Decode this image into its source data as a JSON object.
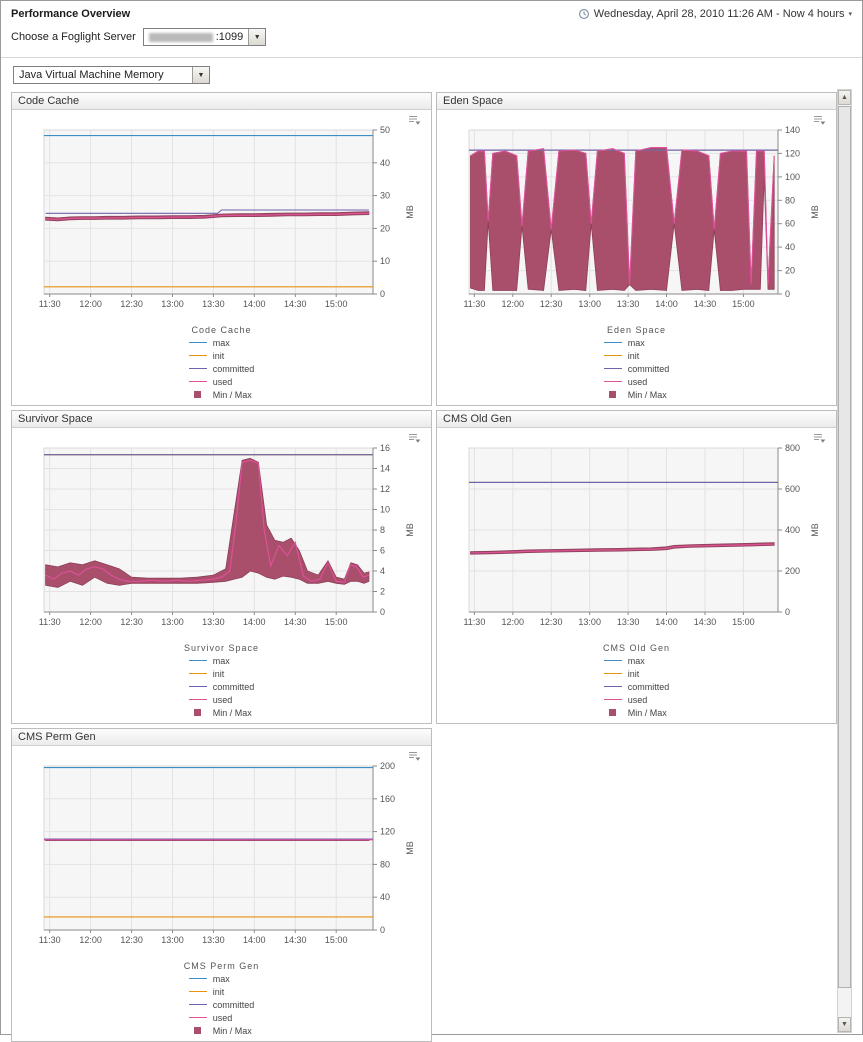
{
  "header": {
    "title": "Performance Overview",
    "time_range": "Wednesday, April 28, 2010 11:26 AM - Now 4 hours",
    "server_label": "Choose a Foglight Server",
    "server_value": ":1099",
    "metric_selector": "Java Virtual Machine Memory"
  },
  "colors": {
    "max": "#3d8ec4",
    "init": "#e8920e",
    "committed": "#6f63ae",
    "used": "#e0519a",
    "band": "#a94f6b",
    "band_edge": "#8d4059"
  },
  "legend_entries": [
    {
      "key": "max",
      "label": "max"
    },
    {
      "key": "init",
      "label": "init"
    },
    {
      "key": "committed",
      "label": "committed"
    },
    {
      "key": "used",
      "label": "used"
    },
    {
      "key": "minmax",
      "label": "Min / Max"
    }
  ],
  "axis": {
    "unit": "MB",
    "x_tick_values": [
      11.5,
      12,
      12.5,
      13,
      13.5,
      14,
      14.5,
      15
    ],
    "x_ticks": [
      "11:30",
      "12:00",
      "12:30",
      "13:00",
      "13:30",
      "14:00",
      "14:30",
      "15:00"
    ]
  },
  "chart_data": [
    {
      "type": "line",
      "title": "Code Cache",
      "ylabel": "MB",
      "ylim": [
        0,
        50
      ],
      "ytick": 10,
      "xlim": [
        11.43,
        15.45
      ],
      "series": {
        "max": 48.3,
        "init": 2.2,
        "committed": {
          "x": [
            11.45,
            13.55,
            13.6,
            15.4
          ],
          "y": [
            24.6,
            24.6,
            25.6,
            25.6
          ]
        },
        "used": {
          "x": [
            11.45,
            11.6,
            11.75,
            11.9,
            12.05,
            12.2,
            12.4,
            12.6,
            12.8,
            13.0,
            13.2,
            13.4,
            13.6,
            13.8,
            14.0,
            14.2,
            14.4,
            14.6,
            14.8,
            15.0,
            15.2,
            15.4
          ],
          "y": [
            22.9,
            22.7,
            23.0,
            23.1,
            23.1,
            23.2,
            23.2,
            23.3,
            23.3,
            23.4,
            23.4,
            23.5,
            23.9,
            24.0,
            24.0,
            24.1,
            24.2,
            24.2,
            24.3,
            24.3,
            24.5,
            24.6
          ]
        },
        "band": {
          "x": [
            11.45,
            11.6,
            11.75,
            11.9,
            12.05,
            12.2,
            12.4,
            12.6,
            12.8,
            13.0,
            13.2,
            13.4,
            13.6,
            13.8,
            14.0,
            14.2,
            14.4,
            14.6,
            14.8,
            15.0,
            15.2,
            15.4
          ],
          "min": [
            22.5,
            22.3,
            22.6,
            22.7,
            22.7,
            22.8,
            22.8,
            22.9,
            22.9,
            23.0,
            23.0,
            23.1,
            23.5,
            23.6,
            23.6,
            23.7,
            23.8,
            23.8,
            23.9,
            23.9,
            24.1,
            24.2
          ],
          "max": [
            23.4,
            23.2,
            23.5,
            23.6,
            23.6,
            23.7,
            23.7,
            23.8,
            23.8,
            23.9,
            23.9,
            24.0,
            24.4,
            24.5,
            24.5,
            24.6,
            24.7,
            24.7,
            24.8,
            24.8,
            25.0,
            25.1
          ]
        }
      }
    },
    {
      "type": "line",
      "title": "Eden Space",
      "ylabel": "MB",
      "ylim": [
        0,
        140
      ],
      "ytick": 20,
      "xlim": [
        11.43,
        15.45
      ],
      "series": {
        "max": 122.8,
        "init": 122.8,
        "committed": 122.8,
        "used": {
          "x": [
            11.45,
            11.55,
            11.63,
            11.68,
            11.74,
            11.9,
            12.05,
            12.12,
            12.2,
            12.4,
            12.5,
            12.6,
            12.8,
            12.95,
            13.02,
            13.1,
            13.3,
            13.45,
            13.52,
            13.6,
            13.8,
            14.0,
            14.1,
            14.2,
            14.4,
            14.55,
            14.62,
            14.7,
            14.85,
            15.0,
            15.04,
            15.1,
            15.17,
            15.22,
            15.27,
            15.32,
            15.4
          ],
          "y": [
            118,
            122,
            122,
            62,
            120,
            122,
            118,
            58,
            122,
            124,
            55,
            122,
            123,
            120,
            60,
            122,
            124,
            120,
            8,
            122,
            125,
            125,
            60,
            123,
            122,
            118,
            55,
            120,
            122,
            122,
            122,
            8,
            122,
            122,
            122,
            8,
            118
          ]
        },
        "band": {
          "x": [
            11.45,
            11.55,
            11.63,
            11.68,
            11.74,
            11.9,
            12.05,
            12.12,
            12.2,
            12.4,
            12.5,
            12.6,
            12.8,
            12.95,
            13.02,
            13.1,
            13.3,
            13.45,
            13.52,
            13.6,
            13.8,
            14.0,
            14.1,
            14.2,
            14.4,
            14.55,
            14.62,
            14.7,
            14.85,
            15.0,
            15.04,
            15.1,
            15.17,
            15.22,
            15.27,
            15.32,
            15.4
          ],
          "min": [
            5,
            3,
            3,
            62,
            3,
            3,
            3,
            58,
            4,
            3,
            55,
            3,
            4,
            3,
            60,
            3,
            4,
            3,
            8,
            3,
            4,
            3,
            60,
            3,
            4,
            3,
            55,
            3,
            3,
            4,
            4,
            4,
            4,
            4,
            100,
            4,
            4
          ],
          "max": [
            118,
            122,
            122,
            62,
            120,
            122,
            118,
            58,
            122,
            124,
            55,
            122,
            123,
            120,
            60,
            122,
            124,
            120,
            8,
            122,
            125,
            125,
            60,
            123,
            122,
            118,
            55,
            120,
            122,
            122,
            122,
            8,
            122,
            122,
            122,
            8,
            118
          ]
        }
      }
    },
    {
      "type": "line",
      "title": "Survivor Space",
      "ylabel": "MB",
      "ylim": [
        0,
        16
      ],
      "ytick": 2,
      "xlim": [
        11.43,
        15.45
      ],
      "series": {
        "max": 15.35,
        "init": 15.35,
        "committed": 15.35,
        "used": {
          "x": [
            11.45,
            11.55,
            11.65,
            11.75,
            11.85,
            11.95,
            12.05,
            12.15,
            12.25,
            12.35,
            12.45,
            12.6,
            12.75,
            12.9,
            13.05,
            13.2,
            13.35,
            13.5,
            13.6,
            13.7,
            13.78,
            13.85,
            13.95,
            14.05,
            14.12,
            14.2,
            14.3,
            14.4,
            14.5,
            14.6,
            14.7,
            14.8,
            14.9,
            15.0,
            15.1,
            15.17,
            15.25,
            15.33,
            15.4
          ],
          "y": [
            3.6,
            3.2,
            3.8,
            4.0,
            3.6,
            4.2,
            4.4,
            4.2,
            3.6,
            3.2,
            3.0,
            3.0,
            3.1,
            3.0,
            3.1,
            3.0,
            3.1,
            3.2,
            3.4,
            4.0,
            9.0,
            14.6,
            14.8,
            14.5,
            8.0,
            4.5,
            6.5,
            5.5,
            6.8,
            3.5,
            3.0,
            3.2,
            4.8,
            3.0,
            2.9,
            4.6,
            4.4,
            3.4,
            3.6
          ]
        },
        "band": {
          "x": [
            11.45,
            11.6,
            11.75,
            11.9,
            12.05,
            12.2,
            12.35,
            12.5,
            12.7,
            12.9,
            13.1,
            13.3,
            13.5,
            13.65,
            13.75,
            13.85,
            13.95,
            14.05,
            14.15,
            14.25,
            14.35,
            14.45,
            14.55,
            14.65,
            14.78,
            14.9,
            15.0,
            15.1,
            15.18,
            15.26,
            15.34,
            15.4
          ],
          "min": [
            2.6,
            2.4,
            3.0,
            2.6,
            3.4,
            2.8,
            2.6,
            2.8,
            2.8,
            2.8,
            2.8,
            2.8,
            2.9,
            3.0,
            3.2,
            3.4,
            4.0,
            3.8,
            3.4,
            3.2,
            3.5,
            3.4,
            3.2,
            2.8,
            2.8,
            3.0,
            2.8,
            2.7,
            3.0,
            3.0,
            2.8,
            3.0
          ],
          "max": [
            4.6,
            4.4,
            4.8,
            4.6,
            5.0,
            4.6,
            4.2,
            3.4,
            3.3,
            3.3,
            3.3,
            3.4,
            3.6,
            4.2,
            9.5,
            14.8,
            15.0,
            14.6,
            8.5,
            7.0,
            6.8,
            7.2,
            6.0,
            4.0,
            3.6,
            5.0,
            3.4,
            3.2,
            4.8,
            4.6,
            3.8,
            3.9
          ]
        }
      }
    },
    {
      "type": "line",
      "title": "CMS Old Gen",
      "ylabel": "MB",
      "ylim": [
        0,
        800
      ],
      "ytick": 200,
      "xlim": [
        11.43,
        15.45
      ],
      "series": {
        "max": 632,
        "init": 632,
        "committed": 632,
        "used": {
          "x": [
            11.45,
            11.7,
            12.0,
            12.2,
            12.5,
            12.8,
            13.1,
            13.4,
            13.6,
            13.8,
            14.0,
            14.1,
            14.3,
            14.6,
            14.9,
            15.1,
            15.25,
            15.4
          ],
          "y": [
            288,
            290,
            293,
            296,
            298,
            300,
            302,
            303,
            305,
            306,
            310,
            318,
            321,
            324,
            326,
            328,
            330,
            331
          ]
        },
        "band": {
          "x": [
            11.45,
            11.7,
            12.0,
            12.2,
            12.5,
            12.8,
            13.1,
            13.4,
            13.6,
            13.8,
            14.0,
            14.1,
            14.3,
            14.6,
            14.9,
            15.1,
            15.25,
            15.4
          ],
          "min": [
            282,
            284,
            287,
            290,
            292,
            294,
            296,
            297,
            299,
            300,
            304,
            311,
            315,
            318,
            320,
            322,
            324,
            325
          ],
          "max": [
            294,
            296,
            300,
            303,
            305,
            307,
            309,
            310,
            312,
            313,
            318,
            325,
            328,
            331,
            333,
            335,
            337,
            338
          ]
        }
      }
    },
    {
      "type": "line",
      "title": "CMS Perm Gen",
      "ylabel": "MB",
      "ylim": [
        0,
        200
      ],
      "ytick": 40,
      "xlim": [
        11.43,
        15.45
      ],
      "series": {
        "max": 198,
        "init": 16,
        "committed": 111,
        "used": 110,
        "band": {
          "x": [
            11.45,
            15.4
          ],
          "min": [
            109,
            109
          ],
          "max": [
            111,
            111
          ]
        }
      }
    }
  ]
}
